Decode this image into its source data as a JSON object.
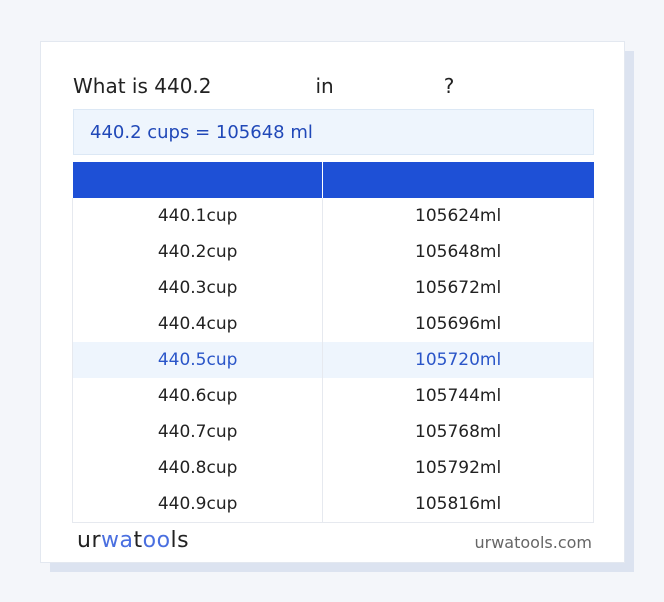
{
  "title": {
    "prefix": "What is 440.2",
    "middle": "in",
    "suffix": "?"
  },
  "result": "440.2 cups = 105648 ml",
  "table": {
    "headers": [
      "",
      ""
    ],
    "rows": [
      [
        "440.1cup",
        "105624ml"
      ],
      [
        "440.2cup",
        "105648ml"
      ],
      [
        "440.3cup",
        "105672ml"
      ],
      [
        "440.4cup",
        "105696ml"
      ],
      [
        "440.5cup",
        "105720ml"
      ],
      [
        "440.6cup",
        "105744ml"
      ],
      [
        "440.7cup",
        "105768ml"
      ],
      [
        "440.8cup",
        "105792ml"
      ],
      [
        "440.9cup",
        "105816ml"
      ]
    ],
    "highlighted_row": 4
  },
  "footer": {
    "logo": "urwatools",
    "site": "urwatools.com"
  },
  "colors": {
    "accent": "#1e50d6",
    "highlight_bg": "#eef5fd"
  }
}
